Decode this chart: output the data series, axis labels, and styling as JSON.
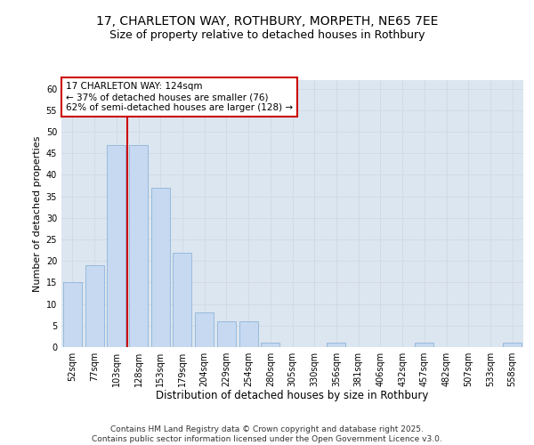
{
  "title": "17, CHARLETON WAY, ROTHBURY, MORPETH, NE65 7EE",
  "subtitle": "Size of property relative to detached houses in Rothbury",
  "xlabel": "Distribution of detached houses by size in Rothbury",
  "ylabel": "Number of detached properties",
  "categories": [
    "52sqm",
    "77sqm",
    "103sqm",
    "128sqm",
    "153sqm",
    "179sqm",
    "204sqm",
    "229sqm",
    "254sqm",
    "280sqm",
    "305sqm",
    "330sqm",
    "356sqm",
    "381sqm",
    "406sqm",
    "432sqm",
    "457sqm",
    "482sqm",
    "507sqm",
    "533sqm",
    "558sqm"
  ],
  "values": [
    15,
    19,
    47,
    47,
    37,
    22,
    8,
    6,
    6,
    1,
    0,
    0,
    1,
    0,
    0,
    0,
    1,
    0,
    0,
    0,
    1
  ],
  "bar_color": "#c6d9f0",
  "bar_edge_color": "#8fb4d9",
  "vline_color": "#cc0000",
  "annotation_text": "17 CHARLETON WAY: 124sqm\n← 37% of detached houses are smaller (76)\n62% of semi-detached houses are larger (128) →",
  "annotation_box_facecolor": "#ffffff",
  "annotation_box_edgecolor": "#cc0000",
  "ylim": [
    0,
    62
  ],
  "yticks": [
    0,
    5,
    10,
    15,
    20,
    25,
    30,
    35,
    40,
    45,
    50,
    55,
    60
  ],
  "grid_color": "#d0d8e4",
  "bg_color": "#dce6f0",
  "title_fontsize": 10,
  "subtitle_fontsize": 9,
  "xlabel_fontsize": 8.5,
  "ylabel_fontsize": 8,
  "tick_fontsize": 7,
  "annotation_fontsize": 7.5,
  "footer_fontsize": 6.5,
  "footer_text": "Contains HM Land Registry data © Crown copyright and database right 2025.\nContains public sector information licensed under the Open Government Licence v3.0."
}
